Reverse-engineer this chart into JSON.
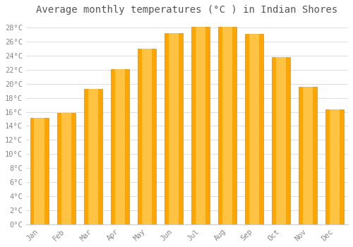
{
  "months": [
    "Jan",
    "Feb",
    "Mar",
    "Apr",
    "May",
    "Jun",
    "Jul",
    "Aug",
    "Sep",
    "Oct",
    "Nov",
    "Dec"
  ],
  "values": [
    15.1,
    15.9,
    19.3,
    22.1,
    25.0,
    27.2,
    28.1,
    28.1,
    27.1,
    23.8,
    19.6,
    16.4
  ],
  "bar_color": "#FFA500",
  "bar_edge_color": "#E08C00",
  "bar_linewidth": 0.5,
  "title": "Average monthly temperatures (°C ) in Indian Shores",
  "title_fontsize": 10,
  "title_color": "#555555",
  "ylim": [
    0,
    29
  ],
  "yticks": [
    0,
    2,
    4,
    6,
    8,
    10,
    12,
    14,
    16,
    18,
    20,
    22,
    24,
    26,
    28
  ],
  "background_color": "#ffffff",
  "grid_color": "#dddddd",
  "tick_label_color": "#888888",
  "tick_label_fontsize": 7.5,
  "font_family": "monospace",
  "bar_width": 0.7,
  "figsize": [
    5.0,
    3.5
  ],
  "dpi": 100
}
